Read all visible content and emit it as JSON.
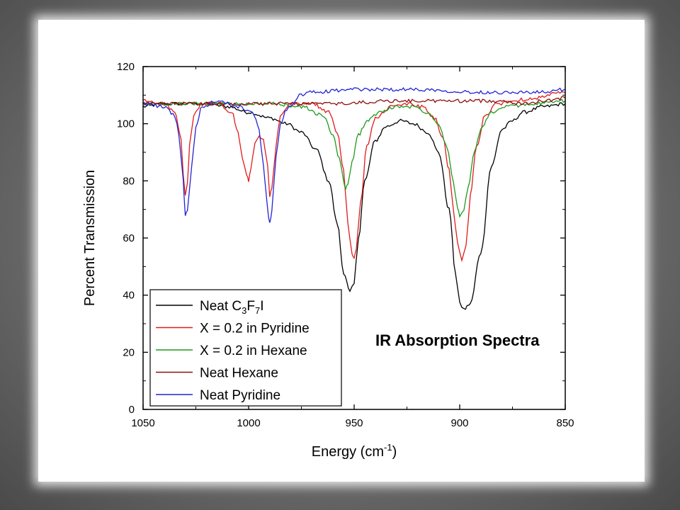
{
  "chart_data": {
    "type": "line",
    "title": "",
    "annotation": "IR Absorption Spectra",
    "xlabel": "Energy (cm",
    "xlabel_sup": "-1",
    "xlabel_tail": ")",
    "ylabel": "Percent Transmission",
    "xlim": [
      1050,
      850
    ],
    "ylim": [
      0,
      120
    ],
    "xticks": [
      1050,
      1000,
      950,
      900,
      850
    ],
    "yticks": [
      0,
      20,
      40,
      60,
      80,
      100,
      120
    ],
    "grid": false,
    "legend_position": "bottom-left",
    "series": [
      {
        "name": "Neat C3F7I",
        "legend_parts": [
          [
            "Neat C",
            ""
          ],
          [
            "3",
            "sub"
          ],
          [
            "F",
            ""
          ],
          [
            "7",
            "sub"
          ],
          [
            "I",
            ""
          ]
        ],
        "color": "#000000",
        "x": [
          1050,
          1040,
          1030,
          1020,
          1010,
          1000,
          990,
          982,
          975,
          968,
          962,
          958,
          955,
          952,
          950,
          948,
          945,
          940,
          935,
          928,
          922,
          915,
          910,
          905,
          902,
          900,
          898,
          895,
          890,
          885,
          880,
          875,
          870,
          860,
          850
        ],
        "y": [
          106,
          107,
          107,
          107,
          106,
          104,
          102,
          100,
          97,
          91,
          80,
          65,
          48,
          41,
          44,
          60,
          80,
          94,
          99,
          101,
          100,
          97,
          90,
          70,
          48,
          37,
          35,
          37,
          55,
          85,
          98,
          101,
          104,
          106,
          107
        ]
      },
      {
        "name": "X = 0.2 in Pyridine",
        "color": "#e01b1b",
        "x": [
          1050,
          1040,
          1035,
          1032,
          1031,
          1030,
          1029,
          1028,
          1026,
          1022,
          1015,
          1008,
          1005,
          1003,
          1001,
          1000,
          999,
          997,
          995,
          993,
          991,
          990,
          989,
          987,
          985,
          980,
          970,
          962,
          958,
          955,
          953,
          951,
          950,
          949,
          947,
          944,
          940,
          932,
          925,
          918,
          912,
          908,
          905,
          903,
          901,
          899,
          897,
          895,
          892,
          888,
          882,
          875,
          865,
          850
        ],
        "y": [
          108,
          107,
          104,
          95,
          82,
          75,
          79,
          92,
          103,
          107,
          107,
          104,
          97,
          88,
          82,
          80,
          84,
          93,
          96,
          94,
          85,
          75,
          77,
          92,
          103,
          107,
          107,
          104,
          97,
          84,
          65,
          55,
          53,
          56,
          72,
          92,
          102,
          106,
          107,
          106,
          102,
          95,
          84,
          70,
          58,
          52,
          57,
          75,
          92,
          103,
          107,
          108,
          109,
          111
        ]
      },
      {
        "name": "X = 0.2 in Hexane",
        "color": "#1e9a1e",
        "x": [
          1050,
          1030,
          1010,
          990,
          975,
          965,
          960,
          957,
          955,
          954,
          953,
          951,
          948,
          944,
          938,
          930,
          922,
          915,
          910,
          906,
          903,
          901,
          900,
          898,
          896,
          893,
          890,
          885,
          878,
          865,
          850
        ],
        "y": [
          107,
          107,
          107,
          107,
          106,
          103,
          96,
          88,
          80,
          77,
          79,
          87,
          96,
          101,
          104,
          106,
          106,
          104,
          100,
          92,
          80,
          70,
          68,
          70,
          78,
          90,
          98,
          104,
          106,
          107,
          108
        ]
      },
      {
        "name": "Neat Hexane",
        "color": "#8b1010",
        "x": [
          1050,
          1020,
          990,
          960,
          930,
          900,
          880,
          870,
          860,
          850
        ],
        "y": [
          107,
          107,
          107,
          107,
          108,
          108,
          108,
          107,
          108,
          109
        ]
      },
      {
        "name": "Neat Pyridine",
        "color": "#2323d6",
        "x": [
          1050,
          1040,
          1035,
          1033,
          1031,
          1030,
          1029,
          1027,
          1025,
          1022,
          1015,
          1005,
          998,
          995,
          993,
          991,
          990,
          989,
          987,
          985,
          982,
          980,
          978,
          976,
          970,
          950,
          920,
          890,
          870,
          860,
          850
        ],
        "y": [
          107,
          106,
          103,
          96,
          80,
          68,
          70,
          85,
          99,
          106,
          108,
          106,
          104,
          98,
          85,
          70,
          65,
          70,
          88,
          100,
          105,
          106,
          108,
          110,
          111,
          112,
          112,
          111,
          111,
          111,
          112
        ]
      }
    ]
  }
}
